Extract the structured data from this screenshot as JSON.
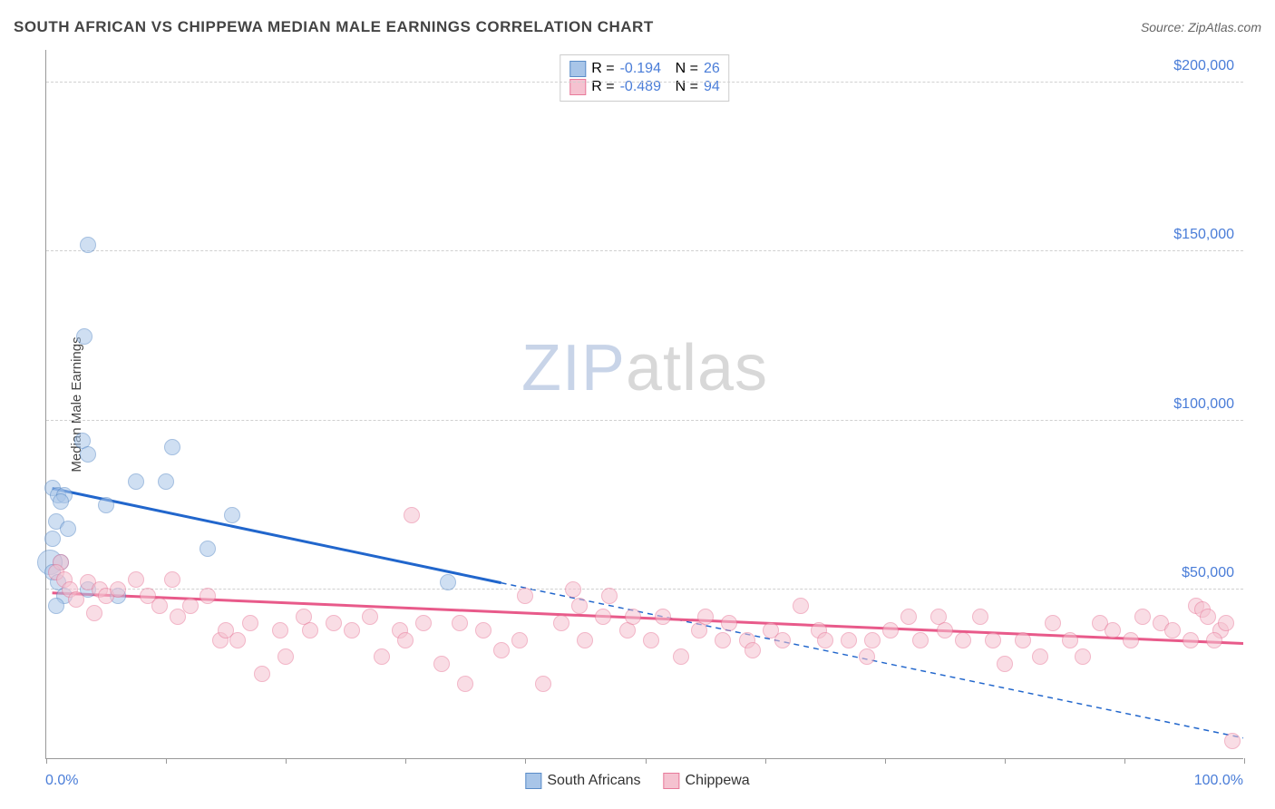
{
  "title": "SOUTH AFRICAN VS CHIPPEWA MEDIAN MALE EARNINGS CORRELATION CHART",
  "source": "Source: ZipAtlas.com",
  "watermark_zip": "ZIP",
  "watermark_atlas": "atlas",
  "ylabel": "Median Male Earnings",
  "chart": {
    "type": "scatter",
    "xlim": [
      0,
      100
    ],
    "ylim": [
      0,
      210000
    ],
    "yticks": [
      50000,
      100000,
      150000,
      200000
    ],
    "ytick_labels": [
      "$50,000",
      "$100,000",
      "$150,000",
      "$200,000"
    ],
    "xticks": [
      0,
      10,
      20,
      30,
      40,
      50,
      60,
      70,
      80,
      90,
      100
    ],
    "xtick_min_label": "0.0%",
    "xtick_max_label": "100.0%",
    "background": "#ffffff",
    "grid_color": "#d0d0d0",
    "axis_color": "#999999",
    "marker_radius": 9,
    "marker_opacity": 0.55,
    "series": [
      {
        "name": "South Africans",
        "color_fill": "#a8c5e8",
        "color_stroke": "#5a8cc8",
        "trend_color": "#2166cc",
        "trend_width": 3,
        "R": "-0.194",
        "N": "26",
        "trend_solid": {
          "x1": 0.5,
          "y1": 80000,
          "x2": 38,
          "y2": 52000
        },
        "trend_dashed": {
          "x1": 38,
          "y1": 52000,
          "x2": 100,
          "y2": 6000
        },
        "points": [
          {
            "x": 3.5,
            "y": 152000
          },
          {
            "x": 3.2,
            "y": 125000
          },
          {
            "x": 3.0,
            "y": 94000
          },
          {
            "x": 10.5,
            "y": 92000
          },
          {
            "x": 3.5,
            "y": 90000
          },
          {
            "x": 7.5,
            "y": 82000
          },
          {
            "x": 10.0,
            "y": 82000
          },
          {
            "x": 0.5,
            "y": 80000
          },
          {
            "x": 1.0,
            "y": 78000
          },
          {
            "x": 1.5,
            "y": 78000
          },
          {
            "x": 1.2,
            "y": 76000
          },
          {
            "x": 5.0,
            "y": 75000
          },
          {
            "x": 15.5,
            "y": 72000
          },
          {
            "x": 0.8,
            "y": 70000
          },
          {
            "x": 1.8,
            "y": 68000
          },
          {
            "x": 0.5,
            "y": 65000
          },
          {
            "x": 13.5,
            "y": 62000
          },
          {
            "x": 1.2,
            "y": 58000
          },
          {
            "x": 0.3,
            "y": 58000,
            "size": 14
          },
          {
            "x": 0.5,
            "y": 55000
          },
          {
            "x": 1.0,
            "y": 52000
          },
          {
            "x": 33.5,
            "y": 52000
          },
          {
            "x": 3.5,
            "y": 50000
          },
          {
            "x": 1.5,
            "y": 48000
          },
          {
            "x": 6.0,
            "y": 48000
          },
          {
            "x": 0.8,
            "y": 45000
          }
        ]
      },
      {
        "name": "Chippewa",
        "color_fill": "#f5c2d0",
        "color_stroke": "#e87a9a",
        "trend_color": "#e85a8a",
        "trend_width": 3,
        "R": "-0.489",
        "N": "94",
        "trend_solid": {
          "x1": 0.5,
          "y1": 49000,
          "x2": 100,
          "y2": 34000
        },
        "points": [
          {
            "x": 1.2,
            "y": 58000
          },
          {
            "x": 0.8,
            "y": 55000
          },
          {
            "x": 1.5,
            "y": 53000
          },
          {
            "x": 30.5,
            "y": 72000
          },
          {
            "x": 2.0,
            "y": 50000
          },
          {
            "x": 3.5,
            "y": 52000
          },
          {
            "x": 4.5,
            "y": 50000
          },
          {
            "x": 5.0,
            "y": 48000
          },
          {
            "x": 6.0,
            "y": 50000
          },
          {
            "x": 7.5,
            "y": 53000
          },
          {
            "x": 8.5,
            "y": 48000
          },
          {
            "x": 9.5,
            "y": 45000
          },
          {
            "x": 10.5,
            "y": 53000
          },
          {
            "x": 11.0,
            "y": 42000
          },
          {
            "x": 12.0,
            "y": 45000
          },
          {
            "x": 13.5,
            "y": 48000
          },
          {
            "x": 14.5,
            "y": 35000
          },
          {
            "x": 15.0,
            "y": 38000
          },
          {
            "x": 16.0,
            "y": 35000
          },
          {
            "x": 17.0,
            "y": 40000
          },
          {
            "x": 18.0,
            "y": 25000
          },
          {
            "x": 19.5,
            "y": 38000
          },
          {
            "x": 20.0,
            "y": 30000
          },
          {
            "x": 21.5,
            "y": 42000
          },
          {
            "x": 22.0,
            "y": 38000
          },
          {
            "x": 24.0,
            "y": 40000
          },
          {
            "x": 25.5,
            "y": 38000
          },
          {
            "x": 27.0,
            "y": 42000
          },
          {
            "x": 28.0,
            "y": 30000
          },
          {
            "x": 29.5,
            "y": 38000
          },
          {
            "x": 30.0,
            "y": 35000
          },
          {
            "x": 31.5,
            "y": 40000
          },
          {
            "x": 33.0,
            "y": 28000
          },
          {
            "x": 34.5,
            "y": 40000
          },
          {
            "x": 35.0,
            "y": 22000
          },
          {
            "x": 36.5,
            "y": 38000
          },
          {
            "x": 38.0,
            "y": 32000
          },
          {
            "x": 39.5,
            "y": 35000
          },
          {
            "x": 40.0,
            "y": 48000
          },
          {
            "x": 41.5,
            "y": 22000
          },
          {
            "x": 43.0,
            "y": 40000
          },
          {
            "x": 44.0,
            "y": 50000
          },
          {
            "x": 44.5,
            "y": 45000
          },
          {
            "x": 45.0,
            "y": 35000
          },
          {
            "x": 46.5,
            "y": 42000
          },
          {
            "x": 47.0,
            "y": 48000
          },
          {
            "x": 48.5,
            "y": 38000
          },
          {
            "x": 49.0,
            "y": 42000
          },
          {
            "x": 50.5,
            "y": 35000
          },
          {
            "x": 51.5,
            "y": 42000
          },
          {
            "x": 53.0,
            "y": 30000
          },
          {
            "x": 54.5,
            "y": 38000
          },
          {
            "x": 55.0,
            "y": 42000
          },
          {
            "x": 56.5,
            "y": 35000
          },
          {
            "x": 57.0,
            "y": 40000
          },
          {
            "x": 58.5,
            "y": 35000
          },
          {
            "x": 59.0,
            "y": 32000
          },
          {
            "x": 60.5,
            "y": 38000
          },
          {
            "x": 61.5,
            "y": 35000
          },
          {
            "x": 63.0,
            "y": 45000
          },
          {
            "x": 64.5,
            "y": 38000
          },
          {
            "x": 65.0,
            "y": 35000
          },
          {
            "x": 67.0,
            "y": 35000
          },
          {
            "x": 68.5,
            "y": 30000
          },
          {
            "x": 69.0,
            "y": 35000
          },
          {
            "x": 70.5,
            "y": 38000
          },
          {
            "x": 72.0,
            "y": 42000
          },
          {
            "x": 73.0,
            "y": 35000
          },
          {
            "x": 74.5,
            "y": 42000
          },
          {
            "x": 75.0,
            "y": 38000
          },
          {
            "x": 76.5,
            "y": 35000
          },
          {
            "x": 78.0,
            "y": 42000
          },
          {
            "x": 79.0,
            "y": 35000
          },
          {
            "x": 80.0,
            "y": 28000
          },
          {
            "x": 81.5,
            "y": 35000
          },
          {
            "x": 83.0,
            "y": 30000
          },
          {
            "x": 84.0,
            "y": 40000
          },
          {
            "x": 85.5,
            "y": 35000
          },
          {
            "x": 86.5,
            "y": 30000
          },
          {
            "x": 88.0,
            "y": 40000
          },
          {
            "x": 89.0,
            "y": 38000
          },
          {
            "x": 90.5,
            "y": 35000
          },
          {
            "x": 91.5,
            "y": 42000
          },
          {
            "x": 93.0,
            "y": 40000
          },
          {
            "x": 94.0,
            "y": 38000
          },
          {
            "x": 95.5,
            "y": 35000
          },
          {
            "x": 96.0,
            "y": 45000
          },
          {
            "x": 96.5,
            "y": 44000
          },
          {
            "x": 97.0,
            "y": 42000
          },
          {
            "x": 98.0,
            "y": 38000
          },
          {
            "x": 98.5,
            "y": 40000
          },
          {
            "x": 97.5,
            "y": 35000
          },
          {
            "x": 99.0,
            "y": 5000
          },
          {
            "x": 2.5,
            "y": 47000
          },
          {
            "x": 4.0,
            "y": 43000
          }
        ]
      }
    ]
  },
  "legend_labels": {
    "r": "R =",
    "n": "N ="
  }
}
